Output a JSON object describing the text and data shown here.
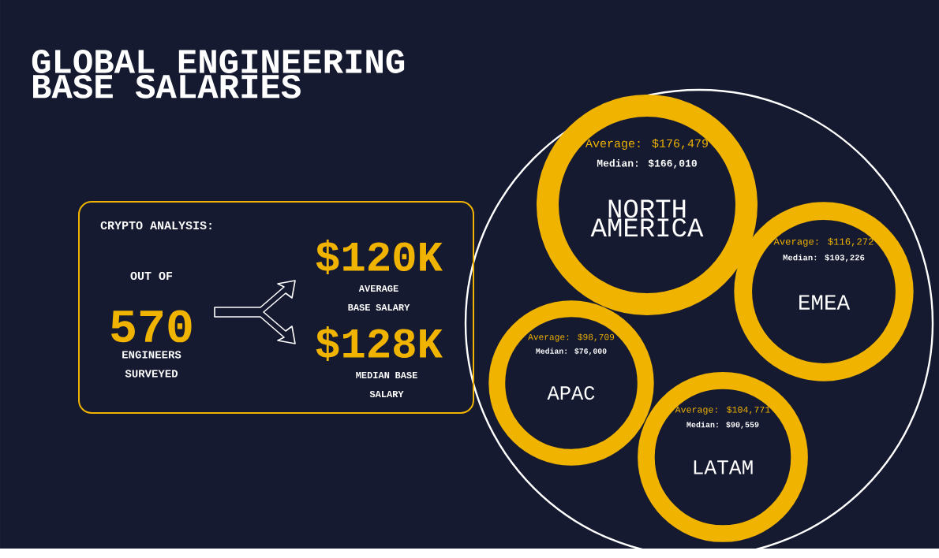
{
  "chart_data": {
    "type": "other",
    "title": "GLOBAL ENGINEERING BASE SALARIES",
    "categories": [
      "NORTH AMERICA",
      "EMEA",
      "APAC",
      "LATAM"
    ],
    "series": [
      {
        "color": "#f0b400",
        "values": [
          176479,
          116272,
          98709,
          104771
        ],
        "value_labels": [
          "Average: $176,479",
          "Average: $116,272",
          "Average: $98,709",
          "Average: $104,771"
        ]
      },
      {
        "color": "#ffffff",
        "values": [
          166010,
          103226,
          76000,
          90559
        ],
        "value_labels": [
          "Median: $166,010",
          "Median: $103,226",
          "Median: $76,000",
          "Median: $90,559"
        ]
      }
    ],
    "annotations": [
      "CRYPTO ANALYSIS:",
      "OUT OF",
      "570",
      "ENGINEERS SURVEYED",
      "$120K",
      "AVERAGE BASE SALARY",
      "$128K",
      "MEDIAN BASE SALARY"
    ]
  }
}
